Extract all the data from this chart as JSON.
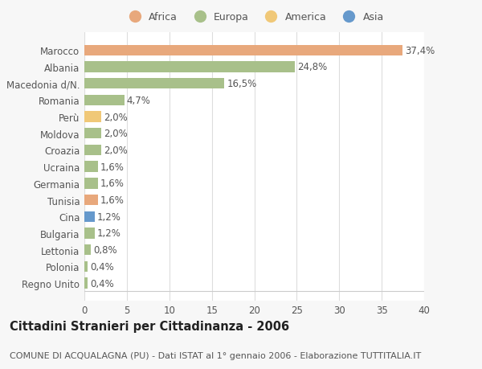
{
  "countries": [
    "Marocco",
    "Albania",
    "Macedonia d/N.",
    "Romania",
    "Perù",
    "Moldova",
    "Croazia",
    "Ucraina",
    "Germania",
    "Tunisia",
    "Cina",
    "Bulgaria",
    "Lettonia",
    "Polonia",
    "Regno Unito"
  ],
  "values": [
    37.4,
    24.8,
    16.5,
    4.7,
    2.0,
    2.0,
    2.0,
    1.6,
    1.6,
    1.6,
    1.2,
    1.2,
    0.8,
    0.4,
    0.4
  ],
  "labels": [
    "37,4%",
    "24,8%",
    "16,5%",
    "4,7%",
    "2,0%",
    "2,0%",
    "2,0%",
    "1,6%",
    "1,6%",
    "1,6%",
    "1,2%",
    "1,2%",
    "0,8%",
    "0,4%",
    "0,4%"
  ],
  "colors": [
    "#E8A87C",
    "#A8C08A",
    "#A8C08A",
    "#A8C08A",
    "#F0C878",
    "#A8C08A",
    "#A8C08A",
    "#A8C08A",
    "#A8C08A",
    "#E8A87C",
    "#6699CC",
    "#A8C08A",
    "#A8C08A",
    "#A8C08A",
    "#A8C08A"
  ],
  "legend_labels": [
    "Africa",
    "Europa",
    "America",
    "Asia"
  ],
  "legend_colors": [
    "#E8A87C",
    "#A8C08A",
    "#F0C878",
    "#6699CC"
  ],
  "xlim": [
    0,
    40
  ],
  "xticks": [
    0,
    5,
    10,
    15,
    20,
    25,
    30,
    35,
    40
  ],
  "title": "Cittadini Stranieri per Cittadinanza - 2006",
  "subtitle": "COMUNE DI ACQUALAGNA (PU) - Dati ISTAT al 1° gennaio 2006 - Elaborazione TUTTITALIA.IT",
  "bg_color": "#f7f7f7",
  "plot_bg_color": "#ffffff",
  "grid_color": "#dddddd",
  "label_fontsize": 8.5,
  "tick_fontsize": 8.5,
  "title_fontsize": 10.5,
  "subtitle_fontsize": 8
}
